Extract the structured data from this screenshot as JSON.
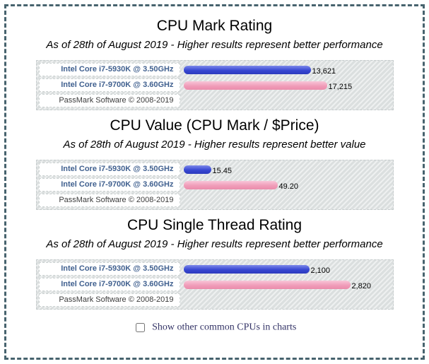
{
  "colors": {
    "page_border": "#47636e",
    "label_blue": "#40608f",
    "footer_gray": "#3c3c3c",
    "bar_blue_light": "#7d89ea",
    "bar_blue": "#3747d2",
    "bar_blue_dark": "#2c3abd",
    "bar_pink_light": "#f8c6d8",
    "bar_pink": "#f09db9",
    "bar_pink_dark": "#ea8cab",
    "checkbox_label_color": "#333366"
  },
  "page": {
    "checkbox_label": "Show other common CPUs in charts",
    "checkbox_checked": false
  },
  "chart_data": [
    {
      "type": "bar",
      "title": "CPU Mark Rating",
      "subtitle": "As of 28th of August 2019 - Higher results represent better performance",
      "categories": [
        "Intel Core i7-5930K @ 3.50GHz",
        "Intel Core i7-9700K @ 3.60GHz"
      ],
      "values": [
        13621,
        17215
      ],
      "value_labels": [
        "13,621",
        "17,215"
      ],
      "bar_widths": [
        "180px",
        "203px"
      ],
      "series_colors": [
        "blue",
        "pink"
      ],
      "footer": "PassMark Software © 2008-2019",
      "orientation": "horizontal",
      "legend": "none",
      "grid": "hatched-background"
    },
    {
      "type": "bar",
      "title": "CPU Value (CPU Mark / $Price)",
      "subtitle": "As of 28th of August 2019 - Higher results represent better value",
      "categories": [
        "Intel Core i7-5930K @ 3.50GHz",
        "Intel Core i7-9700K @ 3.60GHz"
      ],
      "values": [
        15.45,
        49.2
      ],
      "value_labels": [
        "15.45",
        "49.20"
      ],
      "bar_widths": [
        "39px",
        "133px"
      ],
      "series_colors": [
        "blue",
        "pink"
      ],
      "footer": "PassMark Software © 2008-2019",
      "orientation": "horizontal",
      "legend": "none",
      "grid": "hatched-background"
    },
    {
      "type": "bar",
      "title": "CPU Single Thread Rating",
      "subtitle": "As of 28th of August 2019 - Higher results represent better performance",
      "categories": [
        "Intel Core i7-5930K @ 3.50GHz",
        "Intel Core i7-9700K @ 3.60GHz"
      ],
      "values": [
        2100,
        2820
      ],
      "value_labels": [
        "2,100",
        "2,820"
      ],
      "bar_widths": [
        "178px",
        "236px"
      ],
      "series_colors": [
        "blue",
        "pink"
      ],
      "footer": "PassMark Software © 2008-2019",
      "orientation": "horizontal",
      "legend": "none",
      "grid": "hatched-background"
    }
  ]
}
